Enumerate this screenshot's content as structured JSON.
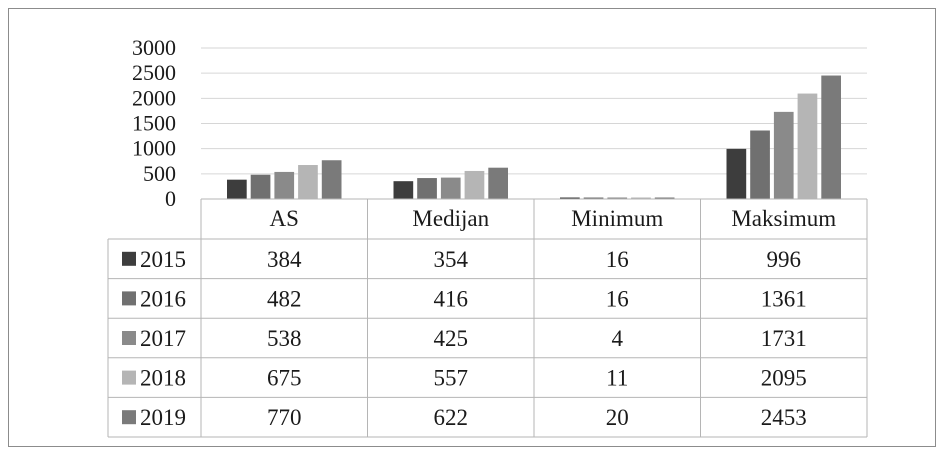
{
  "chart_data": {
    "type": "bar",
    "title": "",
    "xlabel": "",
    "ylabel": "",
    "categories": [
      "AS",
      "Medijan",
      "Minimum",
      "Maksimum"
    ],
    "ylim": [
      0,
      3000
    ],
    "yticks": [
      "0",
      "500",
      "1000",
      "1500",
      "2000",
      "2500",
      "3000"
    ],
    "grid": true,
    "legend": "data-table",
    "series": [
      {
        "name": "2015",
        "color": "#3d3d3d",
        "values": [
          384,
          354,
          16,
          996
        ]
      },
      {
        "name": "2016",
        "color": "#707070",
        "values": [
          482,
          416,
          16,
          1361
        ]
      },
      {
        "name": "2017",
        "color": "#8a8a8a",
        "values": [
          538,
          425,
          4,
          1731
        ]
      },
      {
        "name": "2018",
        "color": "#b5b5b5",
        "values": [
          675,
          557,
          11,
          2095
        ]
      },
      {
        "name": "2019",
        "color": "#7a7a7a",
        "values": [
          770,
          622,
          20,
          2453
        ]
      }
    ]
  }
}
